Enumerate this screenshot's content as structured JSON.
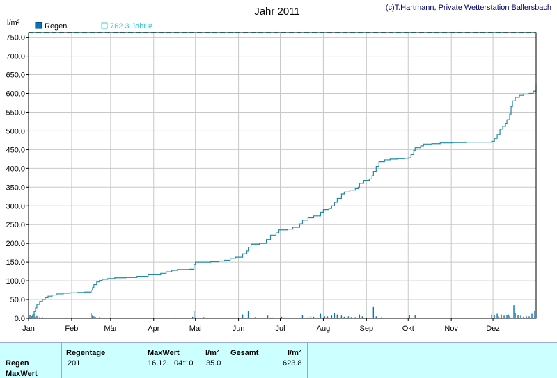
{
  "chart_data": {
    "type": "line",
    "title": "Jahr 2011",
    "credit": "(c)T.Hartmann, Private Wetterstation Ballersbach",
    "ylabel": "l/m²",
    "ylim": [
      0,
      762.3
    ],
    "yticks": [
      "0.0",
      "50.0",
      "100.0",
      "150.0",
      "200.0",
      "250.0",
      "300.0",
      "350.0",
      "400.0",
      "450.0",
      "500.0",
      "550.0",
      "600.0",
      "650.0",
      "700.0",
      "750.0"
    ],
    "xlim": [
      0,
      365
    ],
    "months": [
      "Jan",
      "Feb",
      "Mär",
      "Apr",
      "Mai",
      "Jun",
      "Jul",
      "Aug",
      "Sep",
      "Okt",
      "Nov",
      "Dez"
    ],
    "month_starts": [
      0,
      31,
      59,
      90,
      120,
      151,
      181,
      212,
      243,
      273,
      304,
      334
    ],
    "grid": true,
    "legend": [
      {
        "name": "Regen",
        "color": "#0077bb",
        "kind": "bar"
      },
      {
        "name": "762.3 Jahr #",
        "color": "#33cccc",
        "kind": "line"
      }
    ],
    "series": [
      {
        "name": "762.3 Jahr #",
        "color": "#33cccc",
        "style": "dashed",
        "points": [
          [
            0,
            762.3
          ],
          [
            365,
            762.3
          ]
        ]
      },
      {
        "name": "cumulative",
        "color": "#1e8aa8",
        "style": "step",
        "points": [
          [
            0,
            0
          ],
          [
            2,
            4
          ],
          [
            3,
            9
          ],
          [
            4,
            18
          ],
          [
            5,
            28
          ],
          [
            6,
            37
          ],
          [
            8,
            45
          ],
          [
            10,
            50
          ],
          [
            12,
            55
          ],
          [
            14,
            59
          ],
          [
            17,
            62
          ],
          [
            20,
            65
          ],
          [
            25,
            67
          ],
          [
            30,
            68
          ],
          [
            35,
            69
          ],
          [
            40,
            70
          ],
          [
            44,
            70
          ],
          [
            45,
            75
          ],
          [
            46,
            82
          ],
          [
            47,
            90
          ],
          [
            49,
            97
          ],
          [
            51,
            101
          ],
          [
            53,
            104
          ],
          [
            57,
            106
          ],
          [
            62,
            108
          ],
          [
            70,
            109
          ],
          [
            78,
            112
          ],
          [
            86,
            116
          ],
          [
            95,
            120
          ],
          [
            99,
            124
          ],
          [
            103,
            128
          ],
          [
            107,
            130
          ],
          [
            112,
            130
          ],
          [
            116,
            131
          ],
          [
            119,
            143
          ],
          [
            120,
            150
          ],
          [
            126,
            150
          ],
          [
            131,
            151
          ],
          [
            137,
            153
          ],
          [
            141,
            155
          ],
          [
            145,
            160
          ],
          [
            149,
            163
          ],
          [
            154,
            172
          ],
          [
            157,
            180
          ],
          [
            158,
            190
          ],
          [
            160,
            198
          ],
          [
            166,
            200
          ],
          [
            171,
            210
          ],
          [
            174,
            222
          ],
          [
            178,
            228
          ],
          [
            180,
            236
          ],
          [
            186,
            238
          ],
          [
            190,
            243
          ],
          [
            195,
            252
          ],
          [
            197,
            262
          ],
          [
            201,
            268
          ],
          [
            205,
            273
          ],
          [
            210,
            283
          ],
          [
            212,
            290
          ],
          [
            216,
            293
          ],
          [
            218,
            300
          ],
          [
            220,
            310
          ],
          [
            222,
            320
          ],
          [
            225,
            332
          ],
          [
            227,
            337
          ],
          [
            231,
            342
          ],
          [
            235,
            346
          ],
          [
            237,
            350
          ],
          [
            238,
            360
          ],
          [
            241,
            368
          ],
          [
            245,
            372
          ],
          [
            247,
            380
          ],
          [
            248,
            392
          ],
          [
            250,
            405
          ],
          [
            252,
            418
          ],
          [
            256,
            423
          ],
          [
            260,
            425
          ],
          [
            265,
            426
          ],
          [
            270,
            427
          ],
          [
            273,
            428
          ],
          [
            275,
            437
          ],
          [
            277,
            448
          ],
          [
            278,
            455
          ],
          [
            282,
            460
          ],
          [
            284,
            465
          ],
          [
            290,
            466
          ],
          [
            296,
            468
          ],
          [
            305,
            469
          ],
          [
            315,
            470
          ],
          [
            330,
            470
          ],
          [
            333,
            472
          ],
          [
            335,
            480
          ],
          [
            337,
            490
          ],
          [
            339,
            505
          ],
          [
            341,
            512
          ],
          [
            343,
            520
          ],
          [
            344,
            530
          ],
          [
            346,
            545
          ],
          [
            347,
            565
          ],
          [
            348,
            580
          ],
          [
            350,
            590
          ],
          [
            353,
            595
          ],
          [
            356,
            598
          ],
          [
            360,
            600
          ],
          [
            363,
            606
          ],
          [
            365,
            623.8
          ]
        ]
      }
    ],
    "bars": {
      "name": "Regen",
      "color": "#0077bb",
      "points": [
        [
          1,
          8
        ],
        [
          2,
          5
        ],
        [
          3,
          9
        ],
        [
          4,
          12
        ],
        [
          5,
          4
        ],
        [
          6,
          6
        ],
        [
          8,
          3
        ],
        [
          10,
          3
        ],
        [
          13,
          2
        ],
        [
          17,
          2
        ],
        [
          22,
          2
        ],
        [
          27,
          2
        ],
        [
          33,
          2
        ],
        [
          41,
          2
        ],
        [
          45,
          13
        ],
        [
          46,
          7
        ],
        [
          47,
          5
        ],
        [
          48,
          4
        ],
        [
          51,
          3
        ],
        [
          58,
          2
        ],
        [
          66,
          2
        ],
        [
          81,
          2
        ],
        [
          97,
          2
        ],
        [
          106,
          2
        ],
        [
          118,
          4
        ],
        [
          119,
          20
        ],
        [
          126,
          3
        ],
        [
          145,
          2
        ],
        [
          154,
          10
        ],
        [
          158,
          20
        ],
        [
          163,
          3
        ],
        [
          172,
          7
        ],
        [
          175,
          3
        ],
        [
          182,
          4
        ],
        [
          187,
          2
        ],
        [
          197,
          9
        ],
        [
          201,
          3
        ],
        [
          203,
          5
        ],
        [
          205,
          4
        ],
        [
          210,
          12
        ],
        [
          213,
          5
        ],
        [
          215,
          5
        ],
        [
          218,
          7
        ],
        [
          220,
          13
        ],
        [
          222,
          10
        ],
        [
          225,
          7
        ],
        [
          227,
          4
        ],
        [
          230,
          5
        ],
        [
          232,
          3
        ],
        [
          235,
          3
        ],
        [
          238,
          10
        ],
        [
          240,
          5
        ],
        [
          248,
          30
        ],
        [
          250,
          5
        ],
        [
          254,
          4
        ],
        [
          259,
          2
        ],
        [
          272,
          2
        ],
        [
          274,
          8
        ],
        [
          278,
          8
        ],
        [
          285,
          2
        ],
        [
          299,
          2
        ],
        [
          320,
          2
        ],
        [
          333,
          10
        ],
        [
          335,
          9
        ],
        [
          337,
          12
        ],
        [
          338,
          5
        ],
        [
          340,
          10
        ],
        [
          342,
          7
        ],
        [
          344,
          9
        ],
        [
          345,
          10
        ],
        [
          346,
          6
        ],
        [
          349,
          35
        ],
        [
          350,
          14
        ],
        [
          352,
          9
        ],
        [
          354,
          7
        ],
        [
          356,
          4
        ],
        [
          358,
          5
        ],
        [
          360,
          5
        ],
        [
          362,
          12
        ],
        [
          364,
          20
        ]
      ]
    }
  },
  "summary": {
    "row_labels": [
      "Regen",
      "MaxWert"
    ],
    "regentage_header": "Regentage",
    "regentage_value": "201",
    "maxwert_header": "MaxWert",
    "maxwert_unit": "l/m²",
    "maxwert_date": "16.12.",
    "maxwert_time": "04:10",
    "maxwert_value": "35.0",
    "gesamt_header": "Gesamt",
    "gesamt_unit": "l/m²",
    "gesamt_value": "623.8"
  }
}
